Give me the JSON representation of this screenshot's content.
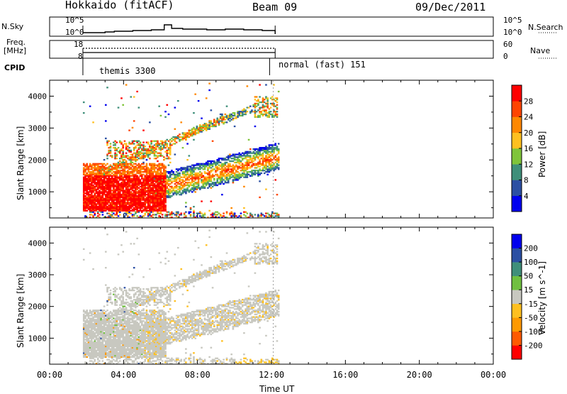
{
  "header": {
    "radar": "Hokkaido (fitACF)",
    "beam": "Beam 09",
    "date": "09/Dec/2011"
  },
  "nsky_panel": {
    "label": "N.Sky",
    "ticks_left": [
      "10^5",
      "10^0"
    ],
    "ticks_right": [
      "10^5",
      "10^0"
    ],
    "right_label": "N.Search"
  },
  "freq_panel": {
    "label_1": "Freq.",
    "label_2": "[MHz]",
    "ticks_left": [
      "18",
      "8"
    ],
    "ticks_right": [
      "60",
      "0"
    ],
    "right_label": "Nave"
  },
  "cpid": {
    "label": "CPID",
    "segments": [
      {
        "name": "themis 3300",
        "start_h": 1.8
      },
      {
        "name": "normal (fast) 151",
        "start_h": 11.9
      }
    ]
  },
  "colors": {
    "power": [
      "#0000ee",
      "#2b4fa3",
      "#3f8f7a",
      "#7fc43a",
      "#ffc020",
      "#ff8800",
      "#ff4400",
      "#ff0000"
    ],
    "velocity": [
      "#ff0000",
      "#ff5a00",
      "#ff9900",
      "#ffc020",
      "#c8c8c0",
      "#70c040",
      "#3f8f7a",
      "#2b4fa3",
      "#0000ee"
    ]
  },
  "chart_data": [
    {
      "type": "heatmap",
      "name": "power",
      "xlabel": "",
      "ylabel": "Slant Range [km]",
      "xlim": [
        0,
        24
      ],
      "ylim": [
        180,
        4500
      ],
      "yticks": [
        "1000",
        "2000",
        "3000",
        "4000"
      ],
      "colorbar": {
        "label": "Power [dB]",
        "ticks": [
          "4",
          "8",
          "12",
          "16",
          "20",
          "24",
          "28"
        ],
        "range": [
          0,
          32
        ]
      }
    },
    {
      "type": "heatmap",
      "name": "velocity",
      "xlabel": "Time UT",
      "ylabel": "Slant Range [km]",
      "xlim": [
        0,
        24
      ],
      "ylim": [
        180,
        4500
      ],
      "xticks": [
        "00:00",
        "04:00",
        "08:00",
        "12:00",
        "16:00",
        "20:00",
        "00:00"
      ],
      "yticks": [
        "1000",
        "2000",
        "3000",
        "4000"
      ],
      "colorbar": {
        "label": "Velocity [m s^-1]",
        "ticks": [
          "200",
          "100",
          "50",
          "15",
          "-15",
          "-50",
          "-100",
          "-200"
        ]
      }
    }
  ]
}
